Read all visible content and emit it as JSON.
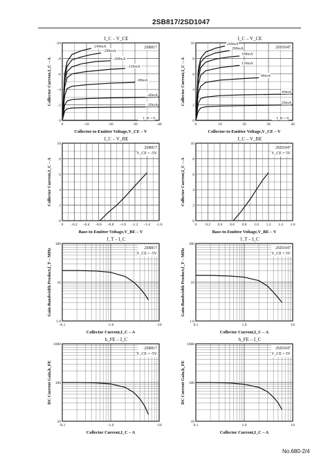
{
  "header": {
    "title": "2SB817/2SD1047"
  },
  "footer": {
    "page_no": "No.680-2/4"
  },
  "chart_data": [
    {
      "type": "line",
      "panel_title": "I_C  –  V_CE",
      "device": "2SB817",
      "xlabel": "Collector-to-Emitter Voltage,V_CE – V",
      "ylabel": "Collector Current,I_C – A",
      "xlim": [
        0,
        -40
      ],
      "ylim": [
        0,
        -10
      ],
      "x_ticks": [
        "0",
        "-10",
        "-20",
        "-30",
        "-40"
      ],
      "y_ticks": [
        "0",
        "-2",
        "-4",
        "-6",
        "-8",
        "-10"
      ],
      "series": [
        {
          "name": "-240mA",
          "x": [
            0,
            -1,
            -2,
            -4,
            -8,
            -12
          ],
          "y": [
            0,
            -6.0,
            -7.6,
            -8.5,
            -9.0,
            -9.3
          ]
        },
        {
          "name": "-200mA",
          "x": [
            0,
            -1,
            -2,
            -4,
            -8,
            -12,
            -16
          ],
          "y": [
            0,
            -5.5,
            -7.0,
            -7.8,
            -8.2,
            -8.5,
            -8.7
          ]
        },
        {
          "name": "-160mA",
          "x": [
            0,
            -1,
            -2,
            -4,
            -8,
            -14,
            -20
          ],
          "y": [
            0,
            -5.0,
            -6.3,
            -6.9,
            -7.3,
            -7.6,
            -7.7
          ]
        },
        {
          "name": "-120mA",
          "x": [
            0,
            -1,
            -2,
            -4,
            -10,
            -20,
            -26
          ],
          "y": [
            0,
            -4.3,
            -5.5,
            -6.0,
            -6.3,
            -6.6,
            -6.7
          ]
        },
        {
          "name": "-80mA",
          "x": [
            0,
            -1,
            -2,
            -4,
            -10,
            -20,
            -30
          ],
          "y": [
            0,
            -3.2,
            -4.1,
            -4.4,
            -4.6,
            -4.8,
            -4.9
          ]
        },
        {
          "name": "-40mA",
          "x": [
            0,
            -1,
            -2,
            -4,
            -10,
            -20,
            -30,
            -40
          ],
          "y": [
            0,
            -2.0,
            -2.5,
            -2.7,
            -2.8,
            -2.9,
            -2.95,
            -3.0
          ]
        },
        {
          "name": "-20mA",
          "x": [
            0,
            -1,
            -2,
            -4,
            -10,
            -20,
            -30,
            -40
          ],
          "y": [
            0,
            -1.2,
            -1.5,
            -1.6,
            -1.65,
            -1.7,
            -1.72,
            -1.75
          ]
        },
        {
          "name": "I_B = 0",
          "x": [
            0,
            -40
          ],
          "y": [
            0,
            0
          ]
        }
      ]
    },
    {
      "type": "line",
      "panel_title": "I_C  –  V_CE",
      "device": "2SD1047",
      "xlabel": "Collector-to-Emitter Voltage,V_CE – V",
      "ylabel": "Collector Current,I_C – A",
      "xlim": [
        0,
        40
      ],
      "ylim": [
        0,
        10
      ],
      "x_ticks": [
        "0",
        "10",
        "20",
        "30",
        "40"
      ],
      "y_ticks": [
        "0",
        "2",
        "4",
        "6",
        "8",
        "10"
      ],
      "series": [
        {
          "name": "240mA",
          "x": [
            0,
            1,
            2,
            4,
            8,
            12
          ],
          "y": [
            0,
            6.5,
            8.0,
            8.8,
            9.3,
            9.6
          ]
        },
        {
          "name": "200mA",
          "x": [
            0,
            1,
            2,
            4,
            8,
            14
          ],
          "y": [
            0,
            6.0,
            7.5,
            8.2,
            8.7,
            9.0
          ]
        },
        {
          "name": "160mA",
          "x": [
            0,
            1,
            2,
            4,
            8,
            14,
            18
          ],
          "y": [
            0,
            5.4,
            6.8,
            7.5,
            7.9,
            8.2,
            8.3
          ]
        },
        {
          "name": "120mA",
          "x": [
            0,
            1,
            2,
            4,
            10,
            18
          ],
          "y": [
            0,
            4.6,
            5.8,
            6.4,
            6.8,
            7.1
          ]
        },
        {
          "name": "80mA",
          "x": [
            0,
            1,
            2,
            4,
            10,
            20,
            26
          ],
          "y": [
            0,
            3.5,
            4.4,
            4.9,
            5.2,
            5.4,
            5.5
          ]
        },
        {
          "name": "40mA",
          "x": [
            0,
            1,
            2,
            4,
            10,
            20,
            30,
            40
          ],
          "y": [
            0,
            2.2,
            2.8,
            3.0,
            3.2,
            3.3,
            3.35,
            3.4
          ]
        },
        {
          "name": "20mA",
          "x": [
            0,
            1,
            2,
            4,
            10,
            20,
            30,
            40
          ],
          "y": [
            0,
            1.2,
            1.6,
            1.75,
            1.85,
            1.9,
            1.95,
            2.0
          ]
        },
        {
          "name": "I_B = 0",
          "x": [
            0,
            40
          ],
          "y": [
            0,
            0
          ]
        }
      ]
    },
    {
      "type": "line",
      "panel_title": "I_C  –  V_BE",
      "device": "2SB817",
      "condition": "V_CE = -5V",
      "xlabel": "Base-to-Emitter Voltage,V_BE – V",
      "ylabel": "Collector Current,I_C – A",
      "xlim": [
        0,
        -1.6
      ],
      "ylim": [
        0,
        10
      ],
      "x_ticks": [
        "0",
        "-0.2",
        "-0.4",
        "-0.6",
        "-0.8",
        "-1.0",
        "-1.2",
        "-1.4",
        "-1.6"
      ],
      "y_ticks": [
        "0",
        "2",
        "4",
        "6",
        "8",
        "10"
      ],
      "series": [
        {
          "x": [
            -0.62,
            -0.75,
            -0.9,
            -1.05,
            -1.2,
            -1.4
          ],
          "y": [
            0,
            1.0,
            2.0,
            3.2,
            4.5,
            6.2
          ]
        }
      ]
    },
    {
      "type": "line",
      "panel_title": "I_C  –  V_BE",
      "device": "2SD1047",
      "condition": "V_CE = 5V",
      "xlabel": "Base-to-Emitter Voltage,V_BE – V",
      "ylabel": "Collector Current,I_C – A",
      "xlim": [
        0,
        1.6
      ],
      "ylim": [
        0,
        10
      ],
      "x_ticks": [
        "0",
        "0.2",
        "0.4",
        "0.6",
        "0.8",
        "1.0",
        "1.2",
        "1.4",
        "1.6"
      ],
      "y_ticks": [
        "0",
        "2",
        "4",
        "6",
        "8",
        "10"
      ],
      "series": [
        {
          "x": [
            0.62,
            0.75,
            0.9,
            1.0,
            1.1,
            1.2
          ],
          "y": [
            0,
            1.2,
            2.8,
            4.0,
            5.2,
            6.2
          ]
        }
      ]
    },
    {
      "type": "line",
      "panel_title": "f_T  –  I_C",
      "device": "2SB817",
      "condition": "V_CE = -5V",
      "xlabel": "Collector Current,I_C – A",
      "ylabel": "Gain-Bandwidth Product,f_T – MHz",
      "xscale": "log",
      "yscale": "log",
      "xlim": [
        -0.1,
        -10
      ],
      "ylim": [
        1,
        100
      ],
      "x_ticks": [
        "-0.1",
        "-1.0",
        "-10"
      ],
      "y_ticks": [
        "1.0",
        "10",
        "100"
      ],
      "series": [
        {
          "x": [
            -0.1,
            -0.2,
            -0.5,
            -1.0,
            -2.0,
            -3.0,
            -4.0,
            -5.0,
            -6.0
          ],
          "y": [
            20,
            20,
            19.5,
            18,
            14,
            10,
            7,
            5,
            3.5
          ]
        }
      ]
    },
    {
      "type": "line",
      "panel_title": "f_T  –  I_C",
      "device": "2SD1047",
      "condition": "V_CE = 5V",
      "xlabel": "Collector Current,I_C – A",
      "ylabel": "Gain-Bandwidth Product,f_T – MHz",
      "xscale": "log",
      "yscale": "log",
      "xlim": [
        0.1,
        10
      ],
      "ylim": [
        1,
        100
      ],
      "x_ticks": [
        "0.1",
        "1.0",
        "10"
      ],
      "y_ticks": [
        "1.0",
        "10",
        "100"
      ],
      "series": [
        {
          "x": [
            0.1,
            0.2,
            0.5,
            1.0,
            2.0,
            3.0,
            4.0,
            5.0,
            6.0
          ],
          "y": [
            15,
            15,
            14.5,
            13.5,
            11,
            8,
            5.5,
            4,
            3
          ]
        }
      ]
    },
    {
      "type": "line",
      "panel_title": "h_FE  –  I_C",
      "device": "2SB817",
      "condition": "V_CE = -5V",
      "xlabel": "Collector Current,I_C – A",
      "ylabel": "DC Current Gain,h_FE",
      "xscale": "log",
      "yscale": "log",
      "xlim": [
        -0.1,
        -10
      ],
      "ylim": [
        10,
        1000
      ],
      "x_ticks": [
        "-0.1",
        "-1.0",
        "-10"
      ],
      "y_ticks": [
        "10",
        "100",
        "1000"
      ],
      "series": [
        {
          "x": [
            -0.1,
            -0.2,
            -0.5,
            -1.0,
            -2.0,
            -3.0,
            -4.0,
            -5.0,
            -6.0
          ],
          "y": [
            100,
            100,
            98,
            92,
            75,
            55,
            38,
            25,
            15
          ]
        }
      ]
    },
    {
      "type": "line",
      "panel_title": "h_FE  –  I_C",
      "device": "2SD1047",
      "condition": "V_CE = 5V",
      "xlabel": "Collector Current,I_C – A",
      "ylabel": "DC Current Gain,h_FE",
      "xscale": "log",
      "yscale": "log",
      "xlim": [
        0.1,
        10
      ],
      "ylim": [
        10,
        1000
      ],
      "x_ticks": [
        "0.1",
        "1.0",
        "10"
      ],
      "y_ticks": [
        "10",
        "100",
        "1000"
      ],
      "series": [
        {
          "x": [
            0.1,
            0.2,
            0.5,
            1.0,
            2.0,
            3.0,
            4.0,
            5.0,
            6.0
          ],
          "y": [
            100,
            100,
            97,
            90,
            75,
            58,
            42,
            30,
            20
          ]
        }
      ]
    }
  ]
}
